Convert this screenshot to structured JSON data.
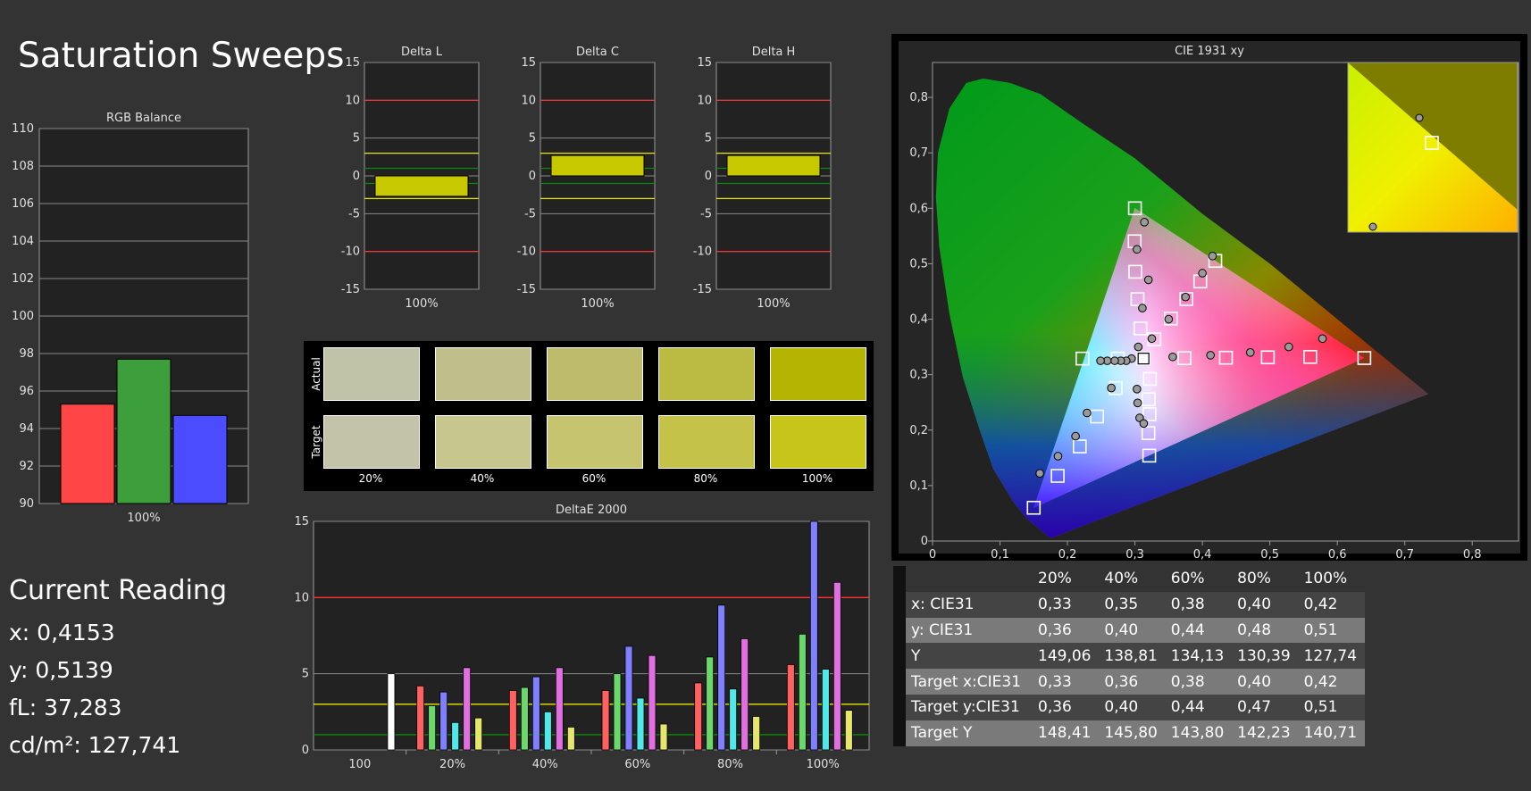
{
  "page": {
    "title": "Saturation Sweeps"
  },
  "current_reading": {
    "heading": "Current Reading",
    "x": "x: 0,4153",
    "y": "y: 0,5139",
    "fl": "fL: 37,283",
    "cdm2": "cd/m²: 127,741"
  },
  "swatches": {
    "row_labels": [
      "Actual",
      "Target"
    ],
    "columns": [
      "20%",
      "40%",
      "60%",
      "80%",
      "100%"
    ],
    "actual_colors": [
      "#c1c3a9",
      "#c0bf8b",
      "#bebc6a",
      "#bbba42",
      "#b5b402"
    ],
    "target_colors": [
      "#c3c3a9",
      "#c8c68f",
      "#c7c46f",
      "#c5c249",
      "#c8c51a"
    ]
  },
  "table": {
    "headers": [
      "",
      "20%",
      "40%",
      "60%",
      "80%",
      "100%"
    ],
    "rows": [
      {
        "label": "x: CIE31",
        "values": [
          "0,33",
          "0,35",
          "0,38",
          "0,40",
          "0,42"
        ]
      },
      {
        "label": "y: CIE31",
        "values": [
          "0,36",
          "0,40",
          "0,44",
          "0,48",
          "0,51"
        ]
      },
      {
        "label": "Y",
        "values": [
          "149,06",
          "138,81",
          "134,13",
          "130,39",
          "127,74"
        ]
      },
      {
        "label": "Target x:CIE31",
        "values": [
          "0,33",
          "0,36",
          "0,38",
          "0,40",
          "0,42"
        ]
      },
      {
        "label": "Target y:CIE31",
        "values": [
          "0,36",
          "0,40",
          "0,44",
          "0,47",
          "0,51"
        ]
      },
      {
        "label": "Target Y",
        "values": [
          "148,41",
          "145,80",
          "143,80",
          "142,23",
          "140,71"
        ]
      }
    ]
  },
  "chart_data": [
    {
      "type": "bar",
      "title": "RGB Balance",
      "categories": [
        "100%"
      ],
      "series": [
        {
          "color": "#ff4545",
          "values": [
            95.3
          ]
        },
        {
          "color": "#3c9f3c",
          "values": [
            97.7
          ]
        },
        {
          "color": "#4c4cff",
          "values": [
            94.7
          ]
        }
      ],
      "ylim": [
        90,
        110
      ],
      "yticks": [
        "90",
        "92",
        "94",
        "96",
        "98",
        "100",
        "102",
        "104",
        "106",
        "108",
        "110"
      ],
      "grid": true
    },
    {
      "type": "bar",
      "title": "Delta L",
      "categories": [
        "100%"
      ],
      "values": [
        -2.7
      ],
      "ylim": [
        -15,
        15
      ],
      "yticks": [
        "-15",
        "-10",
        "-5",
        "0",
        "5",
        "10",
        "15"
      ],
      "reference_lines": [
        10,
        -10,
        3,
        -3,
        1,
        -1
      ]
    },
    {
      "type": "bar",
      "title": "Delta C",
      "categories": [
        "100%"
      ],
      "values": [
        2.7
      ],
      "ylim": [
        -15,
        15
      ],
      "yticks": [
        "-15",
        "-10",
        "-5",
        "0",
        "5",
        "10",
        "15"
      ],
      "reference_lines": [
        10,
        -10,
        3,
        -3,
        1,
        -1
      ]
    },
    {
      "type": "bar",
      "title": "Delta H",
      "categories": [
        "100%"
      ],
      "values": [
        2.7
      ],
      "ylim": [
        -15,
        15
      ],
      "yticks": [
        "-15",
        "-10",
        "-5",
        "0",
        "5",
        "10",
        "15"
      ],
      "reference_lines": [
        10,
        -10,
        3,
        -3,
        1,
        -1
      ]
    },
    {
      "type": "bar",
      "title": "DeltaE 2000",
      "categories": [
        "100",
        "20%",
        "40%",
        "60%",
        "80%",
        "100%"
      ],
      "series": [
        {
          "color": "#ffffff",
          "values": [
            5.0,
            null,
            null,
            null,
            null,
            null
          ]
        },
        {
          "color": "#ff6060",
          "values": [
            null,
            4.2,
            3.9,
            3.9,
            4.4,
            5.6
          ]
        },
        {
          "color": "#6cd86c",
          "values": [
            null,
            2.9,
            4.1,
            5.0,
            6.1,
            7.6
          ]
        },
        {
          "color": "#8080ff",
          "values": [
            null,
            3.8,
            4.8,
            6.8,
            9.5,
            15.0
          ]
        },
        {
          "color": "#50e8e8",
          "values": [
            null,
            1.8,
            2.5,
            3.4,
            4.0,
            5.3
          ]
        },
        {
          "color": "#e070e0",
          "values": [
            null,
            5.4,
            5.4,
            6.2,
            7.3,
            11.0
          ]
        },
        {
          "color": "#e6e66a",
          "values": [
            null,
            2.1,
            1.5,
            1.7,
            2.2,
            2.6
          ]
        }
      ],
      "ylim": [
        0,
        15
      ],
      "yticks": [
        "0",
        "5",
        "10",
        "15"
      ],
      "reference_lines": [
        10,
        3,
        1
      ]
    },
    {
      "type": "scatter",
      "title": "CIE 1931 xy",
      "xlim": [
        0,
        0.85
      ],
      "ylim": [
        0,
        0.85
      ],
      "xticks": [
        "0",
        "0,1",
        "0,2",
        "0,3",
        "0,4",
        "0,5",
        "0,6",
        "0,7",
        "0,8"
      ],
      "yticks": [
        "0",
        "0,1",
        "0,2",
        "0,3",
        "0,4",
        "0,5",
        "0,6",
        "0,7",
        "0,8"
      ],
      "gamut_triangle": [
        [
          0.64,
          0.33
        ],
        [
          0.3,
          0.6
        ],
        [
          0.15,
          0.06
        ]
      ],
      "white_point": [
        0.3127,
        0.329
      ],
      "targets": [
        [
          0.3127,
          0.329
        ],
        [
          0.3735,
          0.3297
        ],
        [
          0.4349,
          0.3305
        ],
        [
          0.497,
          0.3312
        ],
        [
          0.56,
          0.332
        ],
        [
          0.64,
          0.33
        ],
        [
          0.3081,
          0.3834
        ],
        [
          0.3038,
          0.436
        ],
        [
          0.3005,
          0.4855
        ],
        [
          0.2996,
          0.5405
        ],
        [
          0.3,
          0.6
        ],
        [
          0.2714,
          0.2758
        ],
        [
          0.2439,
          0.2245
        ],
        [
          0.2182,
          0.1706
        ],
        [
          0.1855,
          0.1175
        ],
        [
          0.15,
          0.06
        ],
        [
          0.2747,
          0.329
        ],
        [
          0.2222,
          0.329
        ],
        [
          0.3222,
          0.2923
        ],
        [
          0.3203,
          0.2555
        ],
        [
          0.3214,
          0.2288
        ],
        [
          0.32,
          0.1946
        ],
        [
          0.3212,
          0.154
        ],
        [
          0.3288,
          0.3638
        ],
        [
          0.3532,
          0.4012
        ],
        [
          0.3763,
          0.4363
        ],
        [
          0.3968,
          0.468
        ],
        [
          0.4191,
          0.5051
        ]
      ],
      "measured": [
        [
          0.3127,
          0.329
        ],
        [
          0.356,
          0.332
        ],
        [
          0.412,
          0.335
        ],
        [
          0.471,
          0.34
        ],
        [
          0.528,
          0.35
        ],
        [
          0.578,
          0.365
        ],
        [
          0.305,
          0.35
        ],
        [
          0.311,
          0.42
        ],
        [
          0.32,
          0.471
        ],
        [
          0.303,
          0.526
        ],
        [
          0.314,
          0.575
        ],
        [
          0.265,
          0.276
        ],
        [
          0.229,
          0.231
        ],
        [
          0.212,
          0.189
        ],
        [
          0.186,
          0.153
        ],
        [
          0.159,
          0.122
        ],
        [
          0.295,
          0.329
        ],
        [
          0.287,
          0.325
        ],
        [
          0.279,
          0.325
        ],
        [
          0.27,
          0.325
        ],
        [
          0.259,
          0.325
        ],
        [
          0.249,
          0.325
        ],
        [
          0.303,
          0.274
        ],
        [
          0.304,
          0.249
        ],
        [
          0.307,
          0.222
        ],
        [
          0.313,
          0.212
        ],
        [
          0.325,
          0.365
        ],
        [
          0.35,
          0.4
        ],
        [
          0.375,
          0.44
        ],
        [
          0.4,
          0.483
        ],
        [
          0.415,
          0.5139
        ]
      ],
      "inset_targets": [
        [
          0.4191,
          0.5051
        ]
      ],
      "inset_measured": [
        [
          0.4153,
          0.5139
        ],
        [
          0.4,
          0.483
        ]
      ]
    }
  ]
}
